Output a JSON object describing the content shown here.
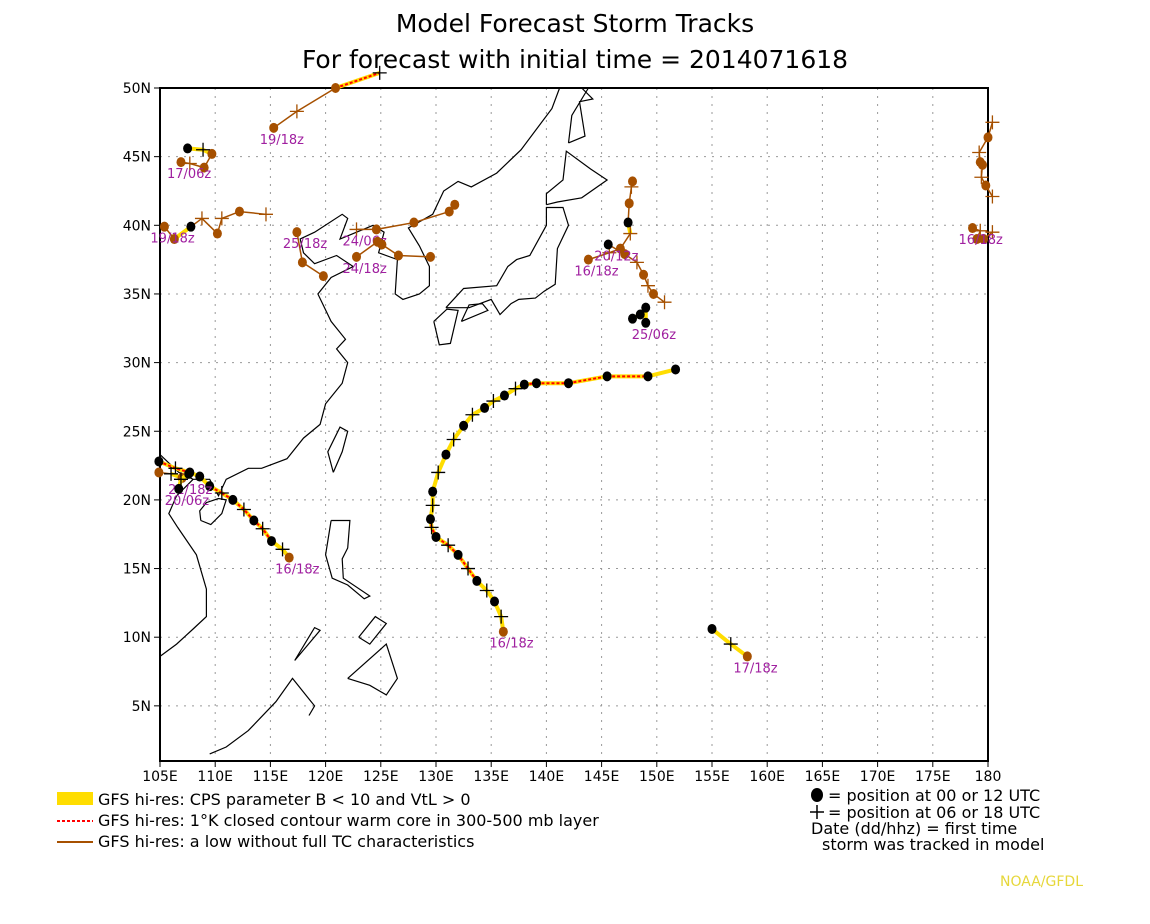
{
  "title": {
    "line1": "Model Forecast Storm Tracks",
    "line2": "For forecast with initial time = 2014071618"
  },
  "colors": {
    "cps_yellow": "#ffdd00",
    "warm_core_red": "#ff0000",
    "low_brown": "#a65000",
    "label_purple": "#a020a0",
    "credit_yellow": "#e6d73a"
  },
  "chart_data": {
    "type": "map-tracks",
    "lon_range": [
      105,
      180
    ],
    "lat_range": [
      1,
      50
    ],
    "grid": true,
    "lon_ticks": [
      "105E",
      "110E",
      "115E",
      "120E",
      "125E",
      "130E",
      "135E",
      "140E",
      "145E",
      "150E",
      "155E",
      "160E",
      "165E",
      "170E",
      "175E",
      "180"
    ],
    "lat_ticks": [
      "50N",
      "45N",
      "40N",
      "35N",
      "30N",
      "25N",
      "20N",
      "15N",
      "10N",
      "5N"
    ],
    "status_codes": {
      "Y": "CPS parameter B < 10 and VtL > 0",
      "R": "1°K closed contour warm core",
      "B": "low without full TC characteristics"
    },
    "tracks": [
      {
        "label": "16/18z",
        "points": [
          [
            136.1,
            10.4,
            "o",
            "B"
          ],
          [
            135.9,
            11.5,
            "+",
            "Y"
          ],
          [
            135.3,
            12.6,
            "o",
            "Y"
          ],
          [
            134.6,
            13.4,
            "+",
            "Y"
          ],
          [
            133.7,
            14.1,
            "o",
            "Y"
          ],
          [
            132.9,
            15.0,
            "+",
            "R"
          ],
          [
            132.0,
            16.0,
            "o",
            "R"
          ],
          [
            131.1,
            16.7,
            "+",
            "R"
          ],
          [
            130.0,
            17.3,
            "o",
            "R"
          ],
          [
            129.6,
            18.0,
            "+",
            "R"
          ],
          [
            129.5,
            18.6,
            "o",
            "R"
          ],
          [
            129.7,
            19.6,
            "+",
            "Y"
          ],
          [
            129.7,
            20.6,
            "o",
            "Y"
          ],
          [
            130.2,
            22.0,
            "+",
            "Y"
          ],
          [
            130.9,
            23.3,
            "o",
            "Y"
          ],
          [
            131.6,
            24.4,
            "+",
            "Y"
          ],
          [
            132.5,
            25.4,
            "o",
            "Y"
          ],
          [
            133.3,
            26.2,
            "+",
            "Y"
          ],
          [
            134.4,
            26.7,
            "o",
            "Y"
          ],
          [
            135.2,
            27.2,
            "+",
            "Y"
          ],
          [
            136.2,
            27.6,
            "o",
            "Y"
          ],
          [
            137.2,
            28.1,
            "+",
            "Y"
          ],
          [
            138.0,
            28.4,
            "o",
            "Y"
          ],
          [
            139.1,
            28.5,
            "o",
            "R"
          ],
          [
            142.0,
            28.5,
            "o",
            "R"
          ],
          [
            145.5,
            29.0,
            "o",
            "R"
          ],
          [
            149.2,
            29.0,
            "o",
            "R"
          ],
          [
            151.7,
            29.5,
            "o",
            "Y"
          ]
        ]
      },
      {
        "label": "17/18z",
        "points": [
          [
            158.2,
            8.6,
            "o",
            "B"
          ],
          [
            156.7,
            9.5,
            "+",
            "Y"
          ],
          [
            155.0,
            10.6,
            "o",
            "Y"
          ]
        ]
      },
      {
        "label": "16/18z",
        "points": [
          [
            116.7,
            15.8,
            "o",
            "B"
          ],
          [
            116.1,
            16.4,
            "+",
            "Y"
          ],
          [
            115.1,
            17.0,
            "o",
            "Y"
          ],
          [
            114.3,
            17.9,
            "+",
            "R"
          ],
          [
            113.5,
            18.5,
            "o",
            "R"
          ],
          [
            112.6,
            19.3,
            "+",
            "R"
          ],
          [
            111.6,
            20.0,
            "o",
            "R"
          ],
          [
            110.6,
            20.5,
            "+",
            "R"
          ],
          [
            109.5,
            21.0,
            "o",
            "R"
          ],
          [
            108.6,
            21.7,
            "o",
            "Y"
          ],
          [
            107.7,
            22.0,
            "o",
            "Y"
          ],
          [
            106.4,
            22.3,
            "+",
            "R"
          ],
          [
            104.9,
            22.8,
            "o",
            "R"
          ]
        ]
      },
      {
        "label": "21/18z",
        "points": [
          [
            107.0,
            21.6,
            "o",
            "B"
          ],
          [
            106.0,
            21.9,
            "+",
            "Y"
          ],
          [
            104.9,
            22.0,
            "o",
            "B"
          ]
        ]
      },
      {
        "label": "20/06z",
        "points": [
          [
            106.7,
            20.8,
            "o",
            "Y"
          ],
          [
            106.9,
            21.5,
            "+",
            "Y"
          ],
          [
            107.6,
            21.9,
            "o",
            "Y"
          ]
        ]
      },
      {
        "label": "19/18z",
        "points": [
          [
            115.3,
            47.1,
            "o",
            "B"
          ],
          [
            117.4,
            48.3,
            "+",
            "B"
          ],
          [
            120.9,
            50.0,
            "o",
            "B"
          ],
          [
            124.9,
            51.1,
            "+",
            "R"
          ]
        ]
      },
      {
        "label": "17/06z",
        "points": [
          [
            106.9,
            44.6,
            "o",
            "B"
          ],
          [
            107.7,
            44.5,
            "+",
            "B"
          ],
          [
            109.0,
            44.2,
            "o",
            "B"
          ],
          [
            109.7,
            45.2,
            "o",
            "B"
          ],
          [
            108.9,
            45.5,
            "+",
            "Y"
          ],
          [
            107.5,
            45.6,
            "o",
            "Y"
          ]
        ]
      },
      {
        "label": "19/18z",
        "points": [
          [
            105.4,
            39.9,
            "o",
            "B"
          ],
          [
            106.3,
            39.0,
            "o",
            "B"
          ],
          [
            107.8,
            39.9,
            "o",
            "Y"
          ],
          [
            108.8,
            40.5,
            "+",
            "B"
          ],
          [
            110.2,
            39.4,
            "o",
            "B"
          ],
          [
            110.6,
            40.5,
            "+",
            "B"
          ],
          [
            112.2,
            41.0,
            "o",
            "B"
          ],
          [
            114.6,
            40.8,
            "+",
            "B"
          ]
        ]
      },
      {
        "label": "25/18z",
        "points": [
          [
            117.4,
            39.5,
            "o",
            "B"
          ],
          [
            117.9,
            37.3,
            "o",
            "B"
          ],
          [
            119.8,
            36.3,
            "o",
            "B"
          ]
        ]
      },
      {
        "label": "24/06z",
        "points": [
          [
            122.8,
            39.7,
            "+",
            "B"
          ],
          [
            124.6,
            39.7,
            "o",
            "B"
          ],
          [
            128.0,
            40.2,
            "o",
            "B"
          ],
          [
            131.2,
            41.0,
            "o",
            "B"
          ],
          [
            131.7,
            41.5,
            "o",
            "B"
          ]
        ]
      },
      {
        "label": "24/18z",
        "points": [
          [
            122.8,
            37.7,
            "o",
            "B"
          ],
          [
            124.7,
            38.8,
            "o",
            "B"
          ],
          [
            125.1,
            38.6,
            "o",
            "B"
          ],
          [
            126.6,
            37.8,
            "o",
            "B"
          ],
          [
            129.5,
            37.7,
            "o",
            "B"
          ]
        ]
      },
      {
        "label": "16/18z",
        "points": [
          [
            143.8,
            37.5,
            "o",
            "B"
          ],
          [
            145.7,
            38.0,
            "+",
            "B"
          ],
          [
            146.7,
            38.3,
            "o",
            "B"
          ],
          [
            147.6,
            39.4,
            "+",
            "B"
          ],
          [
            147.4,
            40.2,
            "o",
            "Y"
          ],
          [
            147.5,
            41.6,
            "o",
            "B"
          ],
          [
            147.7,
            42.8,
            "+",
            "B"
          ],
          [
            147.8,
            43.2,
            "o",
            "B"
          ]
        ]
      },
      {
        "label": "20/12z",
        "points": [
          [
            145.6,
            38.6,
            "o",
            "Y"
          ],
          [
            147.1,
            37.9,
            "o",
            "B"
          ],
          [
            148.2,
            37.3,
            "+",
            "B"
          ],
          [
            148.8,
            36.4,
            "o",
            "B"
          ],
          [
            149.2,
            35.6,
            "+",
            "B"
          ],
          [
            149.7,
            35.0,
            "o",
            "B"
          ],
          [
            150.7,
            34.4,
            "+",
            "B"
          ]
        ]
      },
      {
        "label": "25/06z",
        "points": [
          [
            149.0,
            32.9,
            "o",
            "Y"
          ],
          [
            149.0,
            34.0,
            "o",
            "Y"
          ],
          [
            148.5,
            33.5,
            "o",
            "R"
          ],
          [
            147.8,
            33.2,
            "o",
            "Y"
          ]
        ]
      },
      {
        "label": "16/18z",
        "points": [
          [
            178.6,
            39.8,
            "o",
            "B"
          ],
          [
            179.3,
            39.6,
            "+",
            "B"
          ],
          [
            179.0,
            39.0,
            "o",
            "B"
          ],
          [
            179.6,
            39.0,
            "o",
            "B"
          ],
          [
            180.4,
            39.5,
            "+",
            "B"
          ]
        ]
      },
      {
        "label": "",
        "points": [
          [
            180.4,
            47.5,
            "+",
            "B"
          ],
          [
            180.0,
            46.4,
            "o",
            "B"
          ],
          [
            179.2,
            45.3,
            "+",
            "B"
          ],
          [
            179.3,
            44.6,
            "o",
            "B"
          ],
          [
            179.5,
            44.4,
            "o",
            "B"
          ],
          [
            179.4,
            43.5,
            "+",
            "B"
          ],
          [
            179.8,
            42.9,
            "o",
            "B"
          ],
          [
            180.4,
            42.1,
            "+",
            "B"
          ]
        ]
      }
    ]
  },
  "legend": {
    "items": [
      {
        "swatch": "yellow-bar",
        "text": "GFS hi-res: CPS parameter B < 10 and VtL > 0"
      },
      {
        "swatch": "red-dotted",
        "text": "GFS hi-res: 1°K closed contour warm core in 300-500 mb layer"
      },
      {
        "swatch": "brown-line",
        "text": "GFS hi-res: a low without full TC characteristics"
      }
    ],
    "key": [
      "= position at 00 or 12 UTC",
      "= position at 06 or 18 UTC",
      "Date (dd/hhz)  = first time",
      "storm was tracked in model"
    ]
  },
  "credit": "NOAA/GFDL"
}
